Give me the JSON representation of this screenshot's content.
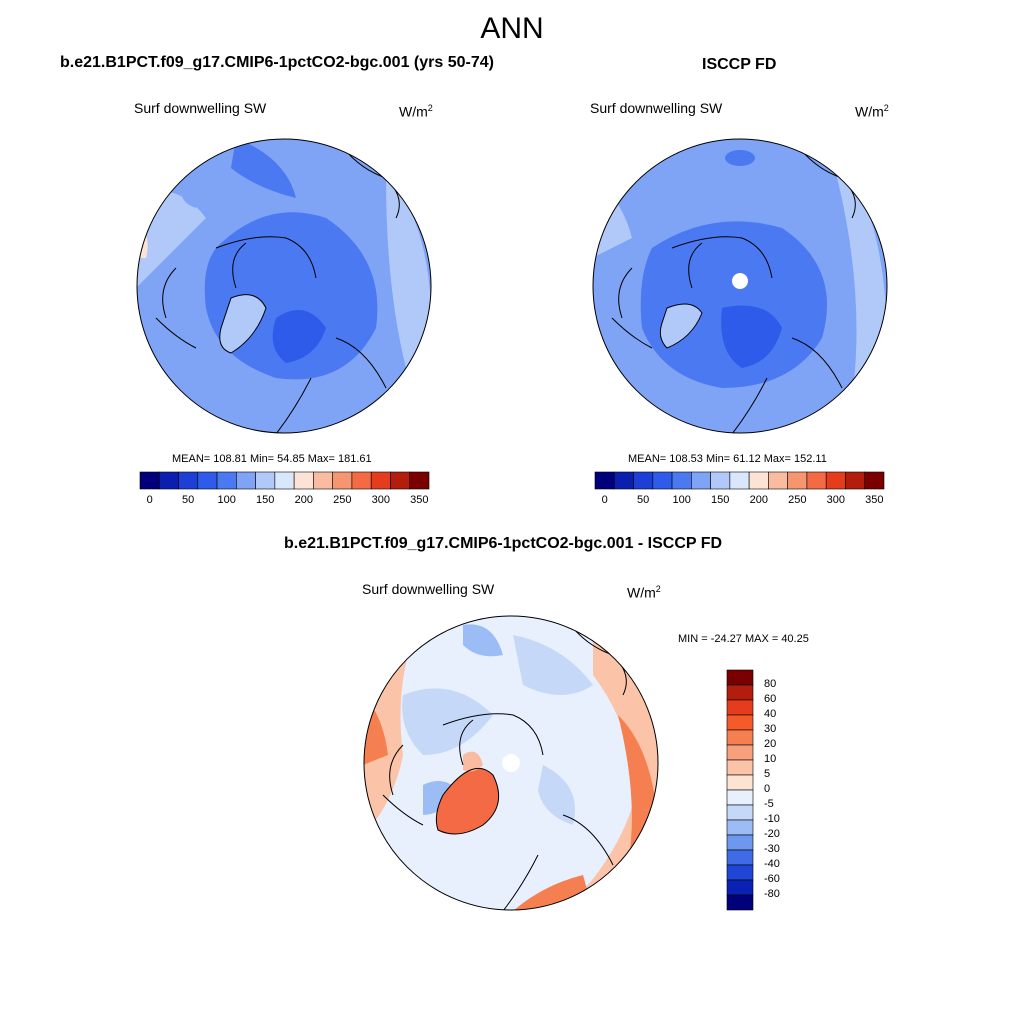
{
  "main_title": "ANN",
  "panels": [
    {
      "title": "b.e21.B1PCT.f09_g17.CMIP6-1pctCO2-bgc.001 (yrs 50-74)",
      "variable": "Surf downwelling SW",
      "units_base": "W/m",
      "units_exp": "2",
      "stats": "MEAN= 108.81  Min=  54.85  Max= 181.61"
    },
    {
      "title": "ISCCP FD",
      "variable": "Surf downwelling SW",
      "units_base": "W/m",
      "units_exp": "2",
      "stats": "MEAN= 108.53  Min=  61.12  Max= 152.11"
    },
    {
      "title": "b.e21.B1PCT.f09_g17.CMIP6-1pctCO2-bgc.001 - ISCCP FD",
      "variable": "Surf downwelling SW",
      "units_base": "W/m",
      "units_exp": "2",
      "stats": "MIN = -24.27 MAX =  40.25"
    }
  ],
  "colorbar_main": {
    "colors": [
      "#00007a",
      "#0a1fb0",
      "#1d3fd6",
      "#2f5bea",
      "#4a79f2",
      "#7fa3f5",
      "#b0c9f8",
      "#d9e7fc",
      "#fde3d6",
      "#f9bca0",
      "#f69670",
      "#f36a45",
      "#e63c1e",
      "#b41c0c",
      "#7a0000"
    ],
    "tick_labels": [
      "0",
      "50",
      "100",
      "150",
      "200",
      "250",
      "300",
      "350"
    ]
  },
  "colorbar_diff": {
    "colors": [
      "#7a0000",
      "#b41c0c",
      "#e63c1e",
      "#f65a28",
      "#f67f52",
      "#f8a07c",
      "#fbc4a8",
      "#fde3d2",
      "#e7f0fc",
      "#c5d8f8",
      "#9cbcf5",
      "#6e97ef",
      "#3f6ce6",
      "#1f46d6",
      "#0a22b4",
      "#00007a"
    ],
    "tick_labels": [
      "80",
      "60",
      "40",
      "30",
      "20",
      "10",
      "5",
      "0",
      "-5",
      "-10",
      "-20",
      "-30",
      "-40",
      "-60",
      "-80"
    ]
  }
}
